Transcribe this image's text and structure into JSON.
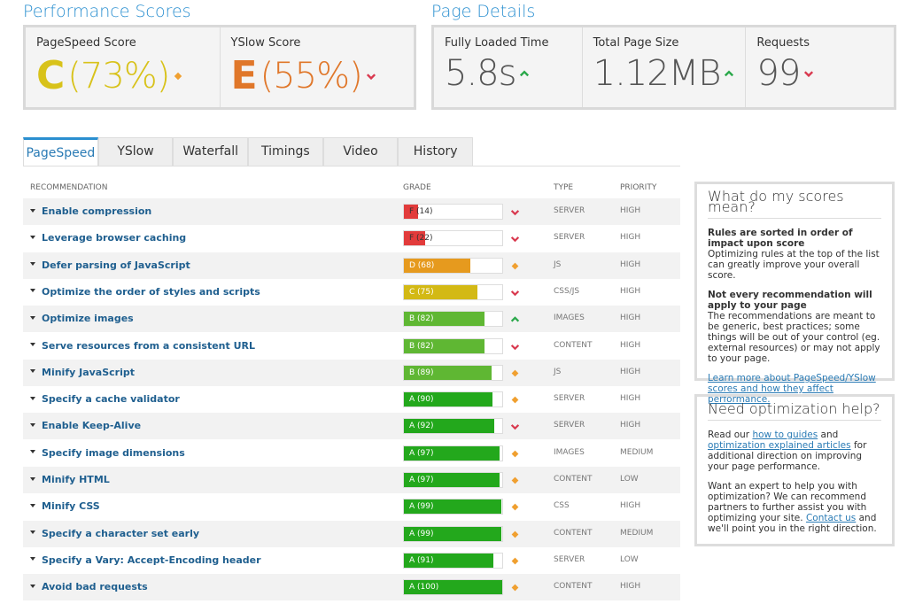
{
  "performance": {
    "title": "Performance Scores",
    "items": [
      {
        "label": "PageSpeed Score",
        "grade": "C",
        "score": "(73%)",
        "trend": "same",
        "color": "#d8c21a"
      },
      {
        "label": "YSlow Score",
        "grade": "E",
        "score": "(55%)",
        "trend": "down",
        "color": "#e0772a"
      }
    ]
  },
  "details": {
    "title": "Page Details",
    "items": [
      {
        "label": "Fully Loaded Time",
        "value": "5.8s",
        "trend": "up"
      },
      {
        "label": "Total Page Size",
        "value": "1.12MB",
        "trend": "up"
      },
      {
        "label": "Requests",
        "value": "99",
        "trend": "down"
      }
    ]
  },
  "tabs": [
    "PageSpeed",
    "YSlow",
    "Waterfall",
    "Timings",
    "Video",
    "History"
  ],
  "table": {
    "headers": [
      "RECOMMENDATION",
      "GRADE",
      "TYPE",
      "PRIORITY"
    ],
    "rows": [
      {
        "name": "Enable compression",
        "grade": "F (14)",
        "score": 14,
        "color": "#e23b3b",
        "trend": "down",
        "type": "SERVER",
        "priority": "HIGH"
      },
      {
        "name": "Leverage browser caching",
        "grade": "F (22)",
        "score": 22,
        "color": "#e23b3b",
        "trend": "down",
        "type": "SERVER",
        "priority": "HIGH"
      },
      {
        "name": "Defer parsing of JavaScript",
        "grade": "D (68)",
        "score": 68,
        "color": "#e69a1e",
        "trend": "same",
        "type": "JS",
        "priority": "HIGH"
      },
      {
        "name": "Optimize the order of styles and scripts",
        "grade": "C (75)",
        "score": 75,
        "color": "#d3b915",
        "trend": "down",
        "type": "CSS/JS",
        "priority": "HIGH"
      },
      {
        "name": "Optimize images",
        "grade": "B (82)",
        "score": 82,
        "color": "#5fb733",
        "trend": "up",
        "type": "IMAGES",
        "priority": "HIGH"
      },
      {
        "name": "Serve resources from a consistent URL",
        "grade": "B (82)",
        "score": 82,
        "color": "#5fb733",
        "trend": "down",
        "type": "CONTENT",
        "priority": "HIGH"
      },
      {
        "name": "Minify JavaScript",
        "grade": "B (89)",
        "score": 89,
        "color": "#5fb733",
        "trend": "same",
        "type": "JS",
        "priority": "HIGH"
      },
      {
        "name": "Specify a cache validator",
        "grade": "A (90)",
        "score": 90,
        "color": "#23a81c",
        "trend": "same",
        "type": "SERVER",
        "priority": "HIGH"
      },
      {
        "name": "Enable Keep-Alive",
        "grade": "A (92)",
        "score": 92,
        "color": "#23a81c",
        "trend": "down",
        "type": "SERVER",
        "priority": "HIGH"
      },
      {
        "name": "Specify image dimensions",
        "grade": "A (97)",
        "score": 97,
        "color": "#23a81c",
        "trend": "same",
        "type": "IMAGES",
        "priority": "MEDIUM"
      },
      {
        "name": "Minify HTML",
        "grade": "A (97)",
        "score": 97,
        "color": "#23a81c",
        "trend": "same",
        "type": "CONTENT",
        "priority": "LOW"
      },
      {
        "name": "Minify CSS",
        "grade": "A (99)",
        "score": 99,
        "color": "#23a81c",
        "trend": "same",
        "type": "CSS",
        "priority": "HIGH"
      },
      {
        "name": "Specify a character set early",
        "grade": "A (99)",
        "score": 99,
        "color": "#23a81c",
        "trend": "same",
        "type": "CONTENT",
        "priority": "MEDIUM"
      },
      {
        "name": "Specify a Vary: Accept-Encoding header",
        "grade": "A (91)",
        "score": 91,
        "color": "#23a81c",
        "trend": "same",
        "type": "SERVER",
        "priority": "LOW"
      },
      {
        "name": "Avoid bad requests",
        "grade": "A (100)",
        "score": 100,
        "color": "#23a81c",
        "trend": "same",
        "type": "CONTENT",
        "priority": "HIGH"
      }
    ]
  },
  "sidebar": {
    "scores": {
      "title": "What do my scores mean?",
      "p1_bold": "Rules are sorted in order of impact upon score",
      "p1": "Optimizing rules at the top of the list can greatly improve your overall score.",
      "p2_bold": "Not every recommendation will apply to your page",
      "p2": "The recommendations are meant to be generic, best practices; some things will be out of your control (eg. external resources) or may not apply to your page.",
      "link": "Learn more about PageSpeed/YSlow scores and how they affect performance."
    },
    "help": {
      "title": "Need optimization help?",
      "p1_a": "Read our",
      "p1_link1": "how to guides",
      "p1_b": "and",
      "p1_link2": "optimization explained articles",
      "p1_c": "for additional direction on improving your page performance.",
      "p2_a": "Want an expert to help you with optimization? We can recommend partners to further assist you with optimizing your site.",
      "p2_link": "Contact us",
      "p2_b": "and we'll point you in the right direction."
    }
  }
}
